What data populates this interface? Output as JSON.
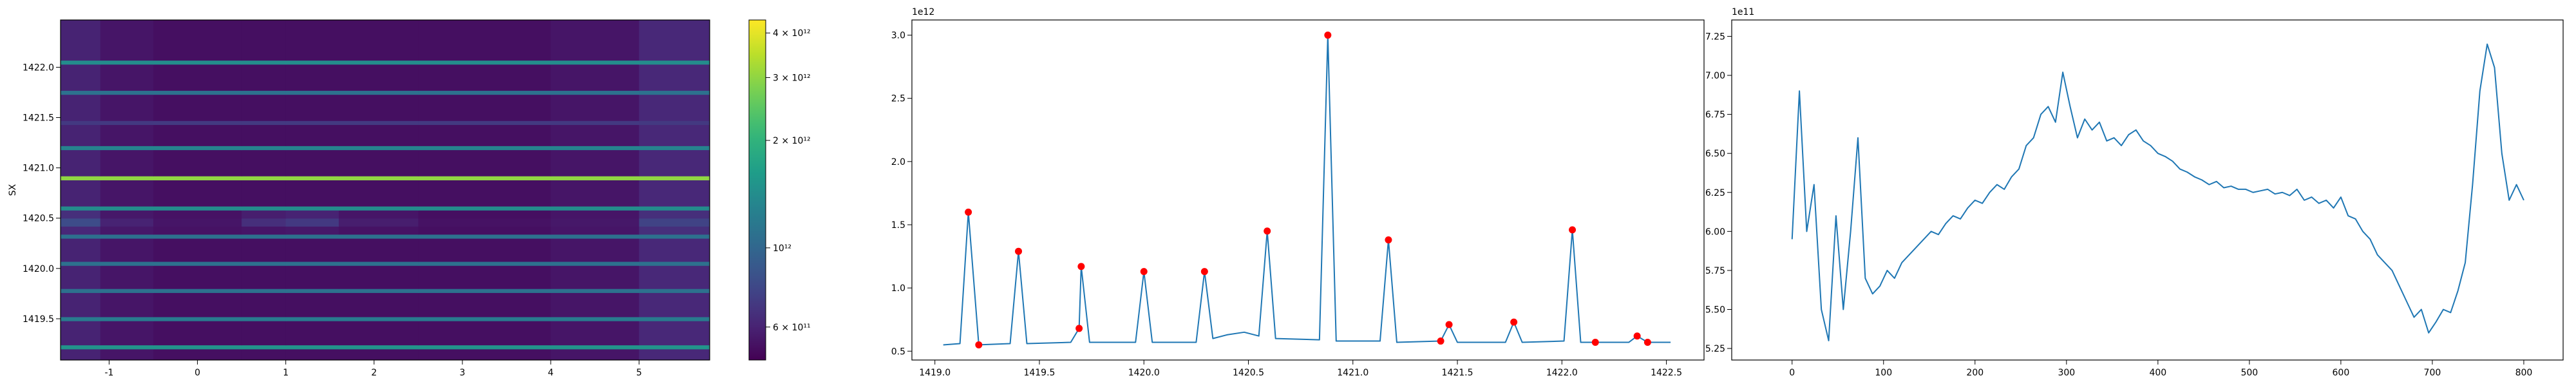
{
  "chart_data": [
    {
      "type": "heatmap",
      "ylabel": "SX",
      "cmap": "viridis",
      "cscale": "log",
      "xlim": [
        -1.55,
        5.8
      ],
      "ylim": [
        1419.09,
        1422.47
      ],
      "xticks": [
        -1,
        0,
        1,
        2,
        3,
        4,
        5
      ],
      "yticks": [
        1419.5,
        {
          "value": 1420,
          "label": "1420.0"
        },
        1420.5,
        {
          "value": 1421,
          "label": "1421.0"
        },
        1421.5,
        {
          "value": 1422,
          "label": "1422.0"
        }
      ],
      "clim": [
        485000000000.0,
        4350000000000.0
      ],
      "cticks": [
        {
          "value": 600000000000.0,
          "label": "6 × 10¹¹"
        },
        {
          "value": 1000000000000.0,
          "label": "10¹²"
        },
        {
          "value": 2000000000000.0,
          "label": "2 × 10¹²"
        },
        {
          "value": 3000000000000.0,
          "label": "3 × 10¹²"
        },
        {
          "value": 4000000000000.0,
          "label": "4 × 10¹²"
        }
      ],
      "x_edges": [
        -1.55,
        -1.1,
        -0.5,
        0.5,
        1.0,
        1.6,
        2.5,
        4.0,
        5.0,
        5.8
      ],
      "y_edges": [
        1419.09,
        1419.2,
        1419.24,
        1419.48,
        1419.52,
        1419.76,
        1419.8,
        1420.03,
        1420.07,
        1420.3,
        1420.34,
        1420.42,
        1420.5,
        1420.58,
        1420.62,
        1420.88,
        1420.92,
        1421.18,
        1421.22,
        1421.43,
        1421.47,
        1421.73,
        1421.77,
        1422.03,
        1422.07,
        1422.47
      ],
      "z": [
        [
          600000000000.0,
          550000000000.0,
          530000000000.0,
          530000000000.0,
          530000000000.0,
          530000000000.0,
          530000000000.0,
          550000000000.0,
          620000000000.0
        ],
        [
          1500000000000.0,
          1500000000000.0,
          1500000000000.0,
          1500000000000.0,
          1500000000000.0,
          1500000000000.0,
          1500000000000.0,
          1500000000000.0,
          1500000000000.0
        ],
        [
          600000000000.0,
          550000000000.0,
          530000000000.0,
          530000000000.0,
          530000000000.0,
          530000000000.0,
          530000000000.0,
          550000000000.0,
          620000000000.0
        ],
        [
          1200000000000.0,
          1200000000000.0,
          1200000000000.0,
          1200000000000.0,
          1200000000000.0,
          1200000000000.0,
          1200000000000.0,
          1200000000000.0,
          1200000000000.0
        ],
        [
          600000000000.0,
          550000000000.0,
          530000000000.0,
          530000000000.0,
          530000000000.0,
          530000000000.0,
          530000000000.0,
          550000000000.0,
          620000000000.0
        ],
        [
          1100000000000.0,
          1100000000000.0,
          1100000000000.0,
          1100000000000.0,
          1100000000000.0,
          1100000000000.0,
          1100000000000.0,
          1100000000000.0,
          1100000000000.0
        ],
        [
          600000000000.0,
          550000000000.0,
          530000000000.0,
          530000000000.0,
          530000000000.0,
          530000000000.0,
          530000000000.0,
          550000000000.0,
          620000000000.0
        ],
        [
          1100000000000.0,
          1100000000000.0,
          1100000000000.0,
          1100000000000.0,
          1100000000000.0,
          1100000000000.0,
          1100000000000.0,
          1100000000000.0,
          1100000000000.0
        ],
        [
          600000000000.0,
          550000000000.0,
          530000000000.0,
          530000000000.0,
          530000000000.0,
          530000000000.0,
          530000000000.0,
          550000000000.0,
          620000000000.0
        ],
        [
          1100000000000.0,
          1100000000000.0,
          1100000000000.0,
          1100000000000.0,
          1100000000000.0,
          1100000000000.0,
          1100000000000.0,
          1100000000000.0,
          1100000000000.0
        ],
        [
          620000000000.0,
          560000000000.0,
          540000000000.0,
          550000000000.0,
          560000000000.0,
          540000000000.0,
          530000000000.0,
          550000000000.0,
          650000000000.0
        ],
        [
          800000000000.0,
          600000000000.0,
          550000000000.0,
          650000000000.0,
          700000000000.0,
          580000000000.0,
          540000000000.0,
          560000000000.0,
          750000000000.0
        ],
        [
          650000000000.0,
          560000000000.0,
          540000000000.0,
          580000000000.0,
          600000000000.0,
          550000000000.0,
          530000000000.0,
          550000000000.0,
          650000000000.0
        ],
        [
          1400000000000.0,
          1400000000000.0,
          1400000000000.0,
          1400000000000.0,
          1400000000000.0,
          1400000000000.0,
          1400000000000.0,
          1400000000000.0,
          1400000000000.0
        ],
        [
          600000000000.0,
          550000000000.0,
          530000000000.0,
          530000000000.0,
          530000000000.0,
          530000000000.0,
          530000000000.0,
          550000000000.0,
          620000000000.0
        ],
        [
          3000000000000.0,
          3000000000000.0,
          3000000000000.0,
          3000000000000.0,
          3000000000000.0,
          3000000000000.0,
          3000000000000.0,
          3000000000000.0,
          3000000000000.0
        ],
        [
          600000000000.0,
          550000000000.0,
          530000000000.0,
          530000000000.0,
          530000000000.0,
          530000000000.0,
          530000000000.0,
          550000000000.0,
          620000000000.0
        ],
        [
          1300000000000.0,
          1300000000000.0,
          1300000000000.0,
          1300000000000.0,
          1300000000000.0,
          1300000000000.0,
          1300000000000.0,
          1300000000000.0,
          1300000000000.0
        ],
        [
          600000000000.0,
          550000000000.0,
          530000000000.0,
          530000000000.0,
          530000000000.0,
          530000000000.0,
          530000000000.0,
          550000000000.0,
          620000000000.0
        ],
        [
          700000000000.0,
          700000000000.0,
          700000000000.0,
          700000000000.0,
          700000000000.0,
          700000000000.0,
          700000000000.0,
          700000000000.0,
          700000000000.0
        ],
        [
          600000000000.0,
          550000000000.0,
          530000000000.0,
          530000000000.0,
          530000000000.0,
          530000000000.0,
          530000000000.0,
          550000000000.0,
          620000000000.0
        ],
        [
          1100000000000.0,
          1100000000000.0,
          1100000000000.0,
          1100000000000.0,
          1100000000000.0,
          1100000000000.0,
          1100000000000.0,
          1100000000000.0,
          1100000000000.0
        ],
        [
          600000000000.0,
          550000000000.0,
          530000000000.0,
          530000000000.0,
          530000000000.0,
          530000000000.0,
          530000000000.0,
          550000000000.0,
          620000000000.0
        ],
        [
          1400000000000.0,
          1400000000000.0,
          1400000000000.0,
          1400000000000.0,
          1400000000000.0,
          1400000000000.0,
          1400000000000.0,
          1400000000000.0,
          1400000000000.0
        ],
        [
          600000000000.0,
          550000000000.0,
          530000000000.0,
          530000000000.0,
          530000000000.0,
          530000000000.0,
          530000000000.0,
          550000000000.0,
          620000000000.0
        ]
      ]
    },
    {
      "type": "line",
      "y_offset_label": "1e12",
      "xlim": [
        1418.89,
        1422.68
      ],
      "ylim": [
        0.43,
        3.12
      ],
      "xticks": [
        {
          "value": 1419,
          "label": "1419.0"
        },
        1419.5,
        {
          "value": 1420,
          "label": "1420.0"
        },
        1420.5,
        {
          "value": 1421,
          "label": "1421.0"
        },
        1421.5,
        {
          "value": 1422,
          "label": "1422.0"
        },
        1422.5
      ],
      "yticks": [
        0.5,
        {
          "value": 1,
          "label": "1.0"
        },
        1.5,
        {
          "value": 2,
          "label": "2.0"
        },
        2.5,
        {
          "value": 3,
          "label": "3.0"
        }
      ],
      "series": [
        {
          "style": "line",
          "color": "#1f77b4",
          "x": [
            1419.04,
            1419.12,
            1419.16,
            1419.21,
            1419.36,
            1419.4,
            1419.44,
            1419.65,
            1419.69,
            1419.7,
            1419.74,
            1419.96,
            1420.0,
            1420.04,
            1420.25,
            1420.29,
            1420.33,
            1420.4,
            1420.48,
            1420.55,
            1420.59,
            1420.63,
            1420.84,
            1420.88,
            1420.92,
            1421.13,
            1421.17,
            1421.21,
            1421.42,
            1421.46,
            1421.5,
            1421.73,
            1421.77,
            1421.81,
            1422.01,
            1422.05,
            1422.09,
            1422.16,
            1422.32,
            1422.36,
            1422.41,
            1422.52
          ],
          "values": [
            0.55,
            0.56,
            1.6,
            0.55,
            0.56,
            1.29,
            0.56,
            0.57,
            0.68,
            1.17,
            0.57,
            0.57,
            1.13,
            0.57,
            0.57,
            1.13,
            0.6,
            0.63,
            0.65,
            0.62,
            1.45,
            0.6,
            0.59,
            3.0,
            0.58,
            0.58,
            1.38,
            0.57,
            0.58,
            0.71,
            0.57,
            0.57,
            0.73,
            0.57,
            0.58,
            1.46,
            0.57,
            0.57,
            0.57,
            0.62,
            0.57,
            0.57
          ]
        },
        {
          "style": "marker",
          "color": "#ff0000",
          "x": [
            1419.16,
            1419.21,
            1419.4,
            1419.69,
            1419.7,
            1420.0,
            1420.29,
            1420.59,
            1420.88,
            1421.17,
            1421.42,
            1421.46,
            1421.77,
            1422.05,
            1422.16,
            1422.36,
            1422.41
          ],
          "values": [
            1.6,
            0.55,
            1.29,
            0.68,
            1.17,
            1.13,
            1.13,
            1.45,
            3.0,
            1.38,
            0.58,
            0.71,
            0.73,
            1.46,
            0.57,
            0.62,
            0.57
          ]
        }
      ]
    },
    {
      "type": "line",
      "y_offset_label": "1e11",
      "xlim": [
        -66,
        843
      ],
      "ylim": [
        5.176,
        7.355
      ],
      "xticks": [
        0,
        100,
        200,
        300,
        400,
        500,
        600,
        700,
        800
      ],
      "yticks": [
        5.25,
        {
          "value": 5.5,
          "label": "5.50"
        },
        5.75,
        {
          "value": 6,
          "label": "6.00"
        },
        6.25,
        {
          "value": 6.5,
          "label": "6.50"
        },
        6.75,
        {
          "value": 7,
          "label": "7.00"
        },
        7.25
      ],
      "series": [
        {
          "style": "line",
          "color": "#1f77b4",
          "x": [
            0,
            8,
            16,
            24,
            32,
            40,
            48,
            56,
            64,
            72,
            80,
            88,
            96,
            104,
            112,
            120,
            128,
            136,
            144,
            152,
            160,
            168,
            176,
            184,
            192,
            200,
            208,
            216,
            224,
            232,
            240,
            248,
            256,
            264,
            272,
            280,
            288,
            296,
            304,
            312,
            320,
            328,
            336,
            344,
            352,
            360,
            368,
            376,
            384,
            392,
            400,
            408,
            416,
            424,
            432,
            440,
            448,
            456,
            464,
            472,
            480,
            488,
            496,
            504,
            512,
            520,
            528,
            536,
            544,
            552,
            560,
            568,
            576,
            584,
            592,
            600,
            608,
            616,
            624,
            632,
            640,
            648,
            656,
            664,
            672,
            680,
            688,
            696,
            704,
            712,
            720,
            728,
            736,
            744,
            752,
            760,
            768,
            776,
            784,
            792,
            800
          ],
          "values": [
            5.95,
            6.9,
            6.0,
            6.3,
            5.5,
            5.3,
            6.1,
            5.5,
            6.0,
            6.6,
            5.7,
            5.6,
            5.65,
            5.75,
            5.7,
            5.8,
            5.85,
            5.9,
            5.95,
            6.0,
            5.98,
            6.05,
            6.1,
            6.08,
            6.15,
            6.2,
            6.18,
            6.25,
            6.3,
            6.27,
            6.35,
            6.4,
            6.55,
            6.6,
            6.75,
            6.8,
            6.7,
            7.02,
            6.8,
            6.6,
            6.72,
            6.65,
            6.7,
            6.58,
            6.6,
            6.55,
            6.62,
            6.65,
            6.58,
            6.55,
            6.5,
            6.48,
            6.45,
            6.4,
            6.38,
            6.35,
            6.33,
            6.3,
            6.32,
            6.28,
            6.29,
            6.27,
            6.27,
            6.25,
            6.26,
            6.27,
            6.24,
            6.25,
            6.23,
            6.27,
            6.2,
            6.22,
            6.18,
            6.2,
            6.15,
            6.22,
            6.1,
            6.08,
            6.0,
            5.95,
            5.85,
            5.8,
            5.75,
            5.65,
            5.55,
            5.45,
            5.5,
            5.35,
            5.42,
            5.5,
            5.48,
            5.62,
            5.8,
            6.3,
            6.9,
            7.2,
            7.05,
            6.5,
            6.2,
            6.3,
            6.2
          ]
        }
      ]
    }
  ]
}
